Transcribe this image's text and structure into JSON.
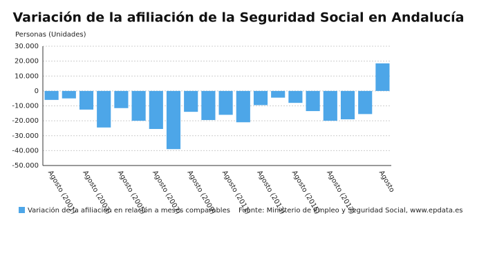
{
  "chart_data": {
    "type": "bar",
    "title": "Variación de la afiliación de la Seguridad Social en Andalucía",
    "y_label": "Personas (Unidades)",
    "source": "Fuente: Ministerio de Empleo y Seguridad Social, www.epdata.es",
    "categories": [
      "Agosto (2001)",
      null,
      "Agosto (2003)",
      null,
      "Agosto (2005)",
      null,
      "Agosto (2007)",
      null,
      "Agosto (2009)",
      null,
      "Agosto (2011)",
      null,
      "Agosto (2013)",
      null,
      "Agosto (2015)",
      null,
      "Agosto (2017)",
      null,
      null,
      "Agosto"
    ],
    "series": [
      {
        "name": "Variación de la afiliación en relación a meses comparables",
        "color": "#4da6e8",
        "values": [
          -6000,
          -5000,
          -12500,
          -24500,
          -11500,
          -20000,
          -25500,
          -39000,
          -14000,
          -19500,
          -16000,
          -21000,
          -9500,
          -4500,
          -8000,
          -13500,
          -20000,
          -19000,
          -15500,
          18500
        ]
      }
    ],
    "ylim": [
      -50000,
      30000
    ],
    "yticks": [
      {
        "value": -50000,
        "label": "-50.000"
      },
      {
        "value": -40000,
        "label": "-40.000"
      },
      {
        "value": -30000,
        "label": "-30.000"
      },
      {
        "value": -20000,
        "label": "-20.000"
      },
      {
        "value": -10000,
        "label": "-10.000"
      },
      0,
      {
        "value": 10000,
        "label": "10.000"
      },
      {
        "value": 20000,
        "label": "20.000"
      },
      {
        "value": 30000,
        "label": "30.000"
      }
    ],
    "grid": true
  }
}
